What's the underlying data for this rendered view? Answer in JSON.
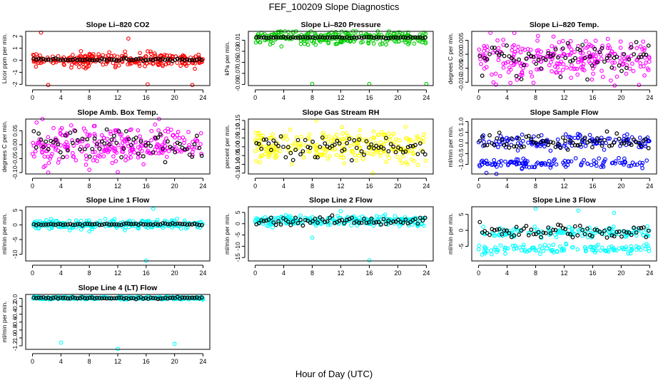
{
  "figure": {
    "title": "FEF_100209  Slope Diagnostics",
    "xlabel": "Hour of Day (UTC)"
  },
  "chart_data": [
    {
      "type": "scatter",
      "title": "Slope Li–820 CO2",
      "ylabel": "Licor ppm per min.",
      "color": "#ff0000",
      "yticks": [
        {
          "v": 2,
          "label": "2"
        },
        {
          "v": 1,
          "label": "1"
        },
        {
          "v": 0,
          "label": "0"
        },
        {
          "v": -1,
          "label": "-1"
        },
        {
          "v": -2,
          "label": "-2"
        }
      ],
      "ylim": [
        -2.1,
        2.4
      ],
      "xlim": [
        -0.96,
        24.96
      ],
      "xticks": [
        0,
        4,
        8,
        12,
        16,
        20,
        24
      ],
      "cloud": {
        "center": 0.05,
        "spread": 0.55
      },
      "black_spread": 0.1,
      "outliers": [
        [
          1.2,
          2.3
        ],
        [
          2.2,
          -2.05
        ],
        [
          16.2,
          -2.0
        ],
        [
          13.5,
          1.8
        ],
        [
          22.5,
          -2.05
        ]
      ]
    },
    {
      "type": "scatter",
      "title": "Slope Li–820 Pressure",
      "ylabel": "kPa per min.",
      "color": "#00cc00",
      "yticks": [
        {
          "v": -0.01,
          "label": "-0.01"
        },
        {
          "v": -0.03,
          "label": "-0.03"
        },
        {
          "v": -0.05,
          "label": "-0.05"
        },
        {
          "v": -0.07,
          "label": "-0.07"
        },
        {
          "v": -0.09,
          "label": "-0.09"
        }
      ],
      "ylim": [
        -0.092,
        0.006
      ],
      "xlim": [
        -0.96,
        24.96
      ],
      "xticks": [
        0,
        4,
        8,
        12,
        16,
        20,
        24
      ],
      "cloud": {
        "center": -0.005,
        "spread": 0.012
      },
      "black_spread": 0.001,
      "outliers": [
        [
          8,
          -0.089
        ],
        [
          16,
          -0.089
        ],
        [
          24,
          -0.089
        ]
      ]
    },
    {
      "type": "scatter",
      "title": "Slope Li–820 Temp.",
      "ylabel": "degrees C per min.",
      "color": "#ff00ff",
      "yticks": [
        {
          "v": 0.005,
          "label": "0.005"
        },
        {
          "v": 0,
          "label": "0.000"
        },
        {
          "v": -0.005,
          "label": "-0.005"
        },
        {
          "v": -0.01,
          "label": "-0.010"
        }
      ],
      "ylim": [
        -0.0112,
        0.0082
      ],
      "xlim": [
        -0.96,
        24.96
      ],
      "xticks": [
        0,
        4,
        8,
        12,
        16,
        20,
        24
      ],
      "cloud": {
        "center": -0.0015,
        "spread": 0.0072
      },
      "black_spread": 0.0055,
      "outliers": [
        [
          7.7,
          -0.0102
        ],
        [
          22.5,
          -0.011
        ]
      ]
    },
    {
      "type": "scatter",
      "title": "Slope Amb. Box Temp.",
      "ylabel": "degrees C per min.",
      "color": "#ff00ff",
      "yticks": [
        {
          "v": 0.05,
          "label": "0.05"
        },
        {
          "v": 0,
          "label": "0.00"
        },
        {
          "v": -0.05,
          "label": "-0.05"
        },
        {
          "v": -0.1,
          "label": "-0.10"
        }
      ],
      "ylim": [
        -0.105,
        0.092
      ],
      "xlim": [
        -0.96,
        24.96
      ],
      "xticks": [
        0,
        4,
        8,
        12,
        16,
        20,
        24
      ],
      "cloud": {
        "center": 0.0,
        "spread": 0.065
      },
      "black_spread": 0.05,
      "outliers": [
        [
          2.2,
          -0.1
        ],
        [
          8,
          -0.09
        ],
        [
          12,
          -0.098
        ]
      ]
    },
    {
      "type": "scatter",
      "title": "Slope Gas Stream RH",
      "ylabel": "percent per min.",
      "color": "#ffff00",
      "yticks": [
        {
          "v": 0.15,
          "label": "0.15"
        },
        {
          "v": 0.1,
          "label": "0.10"
        },
        {
          "v": 0.05,
          "label": "0.05"
        },
        {
          "v": 0,
          "label": "0.00"
        },
        {
          "v": -0.05,
          "label": "-0.05"
        },
        {
          "v": -0.1,
          "label": "-0.10"
        },
        {
          "v": -0.15,
          "label": "-0.15"
        }
      ],
      "ylim": [
        -0.155,
        0.158
      ],
      "xlim": [
        -0.96,
        24.96
      ],
      "xticks": [
        0,
        4,
        8,
        12,
        16,
        20,
        24
      ],
      "cloud": {
        "center": 0.0,
        "spread": 0.09
      },
      "black_spread": 0.06,
      "outliers": [
        [
          8.6,
          0.15
        ],
        [
          16.5,
          -0.15
        ]
      ]
    },
    {
      "type": "scatter",
      "title": "Slope Sample Flow",
      "ylabel": "ml/min per min.",
      "color": "#0000ff",
      "yticks": [
        {
          "v": 1,
          "label": "1.0"
        },
        {
          "v": 0.5,
          "label": "0.5"
        },
        {
          "v": 0,
          "label": "0.0"
        },
        {
          "v": -0.5,
          "label": "-0.5"
        },
        {
          "v": -1,
          "label": "-1.0"
        }
      ],
      "ylim": [
        -1.45,
        1.12
      ],
      "xlim": [
        -0.96,
        24.96
      ],
      "xticks": [
        0,
        4,
        8,
        12,
        16,
        20,
        24
      ],
      "cloud": {
        "center": 0.05,
        "spread": 0.35
      },
      "band2": {
        "center": -0.95,
        "spread": 0.22
      },
      "black_spread": 0.35,
      "outliers": [
        [
          1.1,
          -1.4
        ],
        [
          2.5,
          -1.45
        ]
      ]
    },
    {
      "type": "scatter",
      "title": "Slope Line 1 Flow",
      "ylabel": "ml/min per min.",
      "color": "#00ffff",
      "yticks": [
        {
          "v": 5,
          "label": "5"
        },
        {
          "v": 0,
          "label": "0"
        },
        {
          "v": -5,
          "label": "-5"
        },
        {
          "v": -10,
          "label": "-10"
        }
      ],
      "ylim": [
        -12.3,
        6.2
      ],
      "xlim": [
        -0.96,
        24.96
      ],
      "xticks": [
        0,
        4,
        8,
        12,
        16,
        20,
        24
      ],
      "cloud": {
        "center": 0.2,
        "spread": 1.4
      },
      "black_spread": 0.3,
      "outliers": [
        [
          16,
          -12.2
        ],
        [
          17,
          5.5
        ],
        [
          8,
          -2.2
        ],
        [
          13,
          -1.8
        ]
      ]
    },
    {
      "type": "scatter",
      "title": "Slope Line 2 Flow",
      "ylabel": "ml/min per min.",
      "color": "#00ffff",
      "yticks": [
        {
          "v": 5,
          "label": "5"
        },
        {
          "v": 0,
          "label": "0"
        },
        {
          "v": -5,
          "label": "-5"
        },
        {
          "v": -10,
          "label": "-10"
        },
        {
          "v": -15,
          "label": "-15"
        }
      ],
      "ylim": [
        -16.5,
        7.5
      ],
      "xlim": [
        -0.96,
        24.96
      ],
      "xticks": [
        0,
        4,
        8,
        12,
        16,
        20,
        24
      ],
      "cloud": {
        "center": 1.2,
        "spread": 2.0
      },
      "black_spread": 1.8,
      "outliers": [
        [
          16,
          -16.2
        ],
        [
          8,
          -6.2
        ],
        [
          12,
          5.5
        ]
      ]
    },
    {
      "type": "scatter",
      "title": "Slope Line 3 Flow",
      "ylabel": "ml/min per min.",
      "color": "#00ffff",
      "yticks": [
        {
          "v": 5,
          "label": "5"
        },
        {
          "v": 0,
          "label": "0"
        },
        {
          "v": -5,
          "label": "-5"
        }
      ],
      "ylim": [
        -9.6,
        7.4
      ],
      "xlim": [
        -0.96,
        24.96
      ],
      "xticks": [
        0,
        4,
        8,
        12,
        16,
        20,
        24
      ],
      "cloud": {
        "center": -0.6,
        "spread": 1.6
      },
      "band2": {
        "center": -5.8,
        "spread": 1.4
      },
      "black_spread": 2.2,
      "outliers": [
        [
          14,
          6.2
        ],
        [
          8,
          6.8
        ],
        [
          19,
          5.5
        ]
      ]
    },
    {
      "type": "scatter",
      "title": "Slope Line 4 (LT) Flow",
      "ylabel": "ml/min per min.",
      "color": "#00ffff",
      "yticks": [
        {
          "v": 0,
          "label": "0.0"
        },
        {
          "v": -0.2,
          "label": "-0.2"
        },
        {
          "v": -0.4,
          "label": "-0.4"
        },
        {
          "v": -0.6,
          "label": "-0.6"
        },
        {
          "v": -0.8,
          "label": "-0.8"
        },
        {
          "v": -1,
          "label": "-1.0"
        },
        {
          "v": -1.2,
          "label": "-1.2"
        }
      ],
      "ylim": [
        -1.29,
        0.1
      ],
      "xlim": [
        -0.96,
        24.96
      ],
      "xticks": [
        0,
        4,
        8,
        12,
        16,
        20,
        24
      ],
      "cloud": {
        "center": 0.01,
        "spread": 0.035
      },
      "black_spread": 0.025,
      "outliers": [
        [
          4,
          -1.12
        ],
        [
          12,
          -1.28
        ],
        [
          20,
          -1.15
        ]
      ]
    }
  ]
}
